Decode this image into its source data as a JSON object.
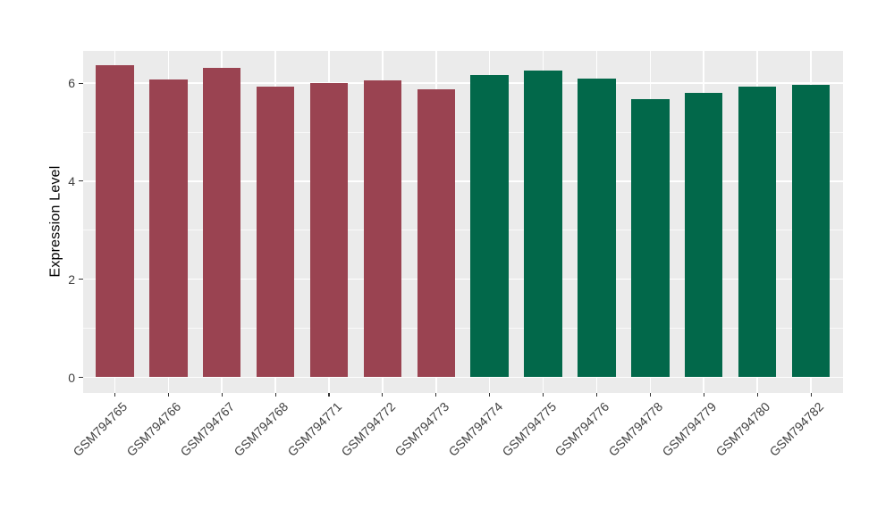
{
  "chart_data": {
    "type": "bar",
    "title": "",
    "xlabel": "",
    "ylabel": "Expression Level",
    "categories": [
      "GSM794765",
      "GSM794766",
      "GSM794767",
      "GSM794768",
      "GSM794771",
      "GSM794772",
      "GSM794773",
      "GSM794774",
      "GSM794775",
      "GSM794776",
      "GSM794778",
      "GSM794779",
      "GSM794780",
      "GSM794782"
    ],
    "values": [
      6.36,
      6.08,
      6.32,
      5.92,
      6.01,
      6.05,
      5.88,
      6.16,
      6.26,
      6.09,
      5.67,
      5.81,
      5.93,
      5.97
    ],
    "bar_colors": [
      "#9a4351",
      "#9a4351",
      "#9a4351",
      "#9a4351",
      "#9a4351",
      "#9a4351",
      "#9a4351",
      "#02684a",
      "#02684a",
      "#02684a",
      "#02684a",
      "#02684a",
      "#02684a",
      "#02684a"
    ],
    "group_palette": {
      "left_group": "#9a4351",
      "right_group": "#02684a"
    },
    "y_ticks": [
      0,
      2,
      4,
      6
    ],
    "y_minor_gridlines": [
      1,
      3,
      5
    ],
    "ylim": [
      -0.32,
      6.69
    ],
    "grid": "on",
    "legend_position": "none",
    "x_label_angle_deg": 45,
    "colors": {
      "figure_background": "#ffffff",
      "panel_background": "#ebebeb",
      "gridline": "#ffffff",
      "axis_text": "#404040",
      "axis_title": "#000000",
      "tick_mark": "#333333"
    }
  }
}
